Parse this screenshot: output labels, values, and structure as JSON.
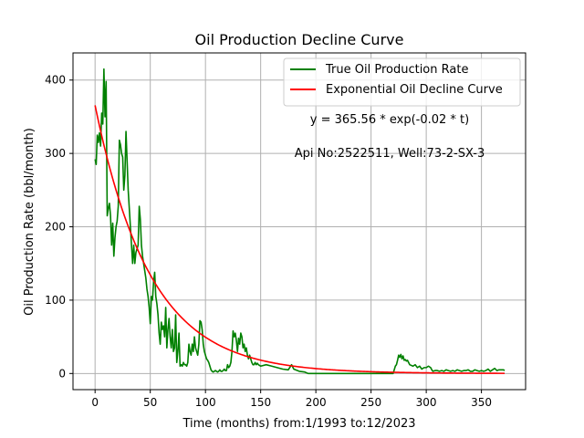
{
  "chart_data": {
    "type": "line",
    "title": "Oil Production Decline Curve",
    "xlabel": "Time (months) from:1/1993 to:12/2023",
    "ylabel": "Oil Production Rate (bbl/month)",
    "xlim": [
      -20,
      390
    ],
    "ylim": [
      -22,
      437
    ],
    "x_ticks": [
      0,
      50,
      100,
      150,
      200,
      250,
      300,
      350
    ],
    "y_ticks": [
      0,
      100,
      200,
      300,
      400
    ],
    "grid": true,
    "legend_position": "top-right",
    "colors": {
      "true_series": "#008000",
      "fit_series": "#ff0000",
      "grid": "#b0b0b0"
    },
    "annotations": [
      "y = 365.56 * exp(-0.02 * t)",
      "Api No:2522511, Well:73-2-SX-3"
    ],
    "series": [
      {
        "name": "True Oil Production Rate",
        "color": "#008000",
        "points": [
          [
            0,
            292
          ],
          [
            1,
            285
          ],
          [
            2,
            325
          ],
          [
            3,
            315
          ],
          [
            4,
            328
          ],
          [
            5,
            310
          ],
          [
            6,
            355
          ],
          [
            7,
            340
          ],
          [
            8,
            415
          ],
          [
            9,
            350
          ],
          [
            10,
            398
          ],
          [
            11,
            215
          ],
          [
            12,
            225
          ],
          [
            13,
            232
          ],
          [
            14,
            215
          ],
          [
            15,
            175
          ],
          [
            16,
            205
          ],
          [
            17,
            160
          ],
          [
            18,
            185
          ],
          [
            19,
            200
          ],
          [
            20,
            208
          ],
          [
            21,
            228
          ],
          [
            22,
            318
          ],
          [
            23,
            312
          ],
          [
            24,
            300
          ],
          [
            25,
            295
          ],
          [
            26,
            250
          ],
          [
            27,
            270
          ],
          [
            28,
            330
          ],
          [
            29,
            290
          ],
          [
            30,
            250
          ],
          [
            31,
            225
          ],
          [
            32,
            200
          ],
          [
            33,
            175
          ],
          [
            34,
            150
          ],
          [
            35,
            175
          ],
          [
            36,
            150
          ],
          [
            37,
            165
          ],
          [
            38,
            170
          ],
          [
            39,
            175
          ],
          [
            40,
            228
          ],
          [
            41,
            210
          ],
          [
            42,
            175
          ],
          [
            43,
            160
          ],
          [
            44,
            150
          ],
          [
            45,
            140
          ],
          [
            46,
            130
          ],
          [
            47,
            115
          ],
          [
            48,
            105
          ],
          [
            49,
            90
          ],
          [
            50,
            68
          ],
          [
            51,
            105
          ],
          [
            52,
            100
          ],
          [
            53,
            125
          ],
          [
            54,
            138
          ],
          [
            55,
            105
          ],
          [
            56,
            95
          ],
          [
            57,
            80
          ],
          [
            58,
            55
          ],
          [
            59,
            40
          ],
          [
            60,
            70
          ],
          [
            61,
            60
          ],
          [
            62,
            65
          ],
          [
            63,
            50
          ],
          [
            64,
            90
          ],
          [
            65,
            35
          ],
          [
            66,
            60
          ],
          [
            67,
            75
          ],
          [
            68,
            50
          ],
          [
            69,
            35
          ],
          [
            70,
            60
          ],
          [
            71,
            30
          ],
          [
            72,
            35
          ],
          [
            73,
            80
          ],
          [
            74,
            15
          ],
          [
            75,
            30
          ],
          [
            76,
            55
          ],
          [
            77,
            10
          ],
          [
            78,
            12
          ],
          [
            79,
            10
          ],
          [
            80,
            15
          ],
          [
            81,
            12
          ],
          [
            82,
            12
          ],
          [
            83,
            10
          ],
          [
            84,
            15
          ],
          [
            85,
            40
          ],
          [
            86,
            30
          ],
          [
            87,
            25
          ],
          [
            88,
            40
          ],
          [
            89,
            30
          ],
          [
            90,
            50
          ],
          [
            91,
            35
          ],
          [
            92,
            30
          ],
          [
            93,
            25
          ],
          [
            94,
            40
          ],
          [
            95,
            72
          ],
          [
            96,
            70
          ],
          [
            97,
            60
          ],
          [
            98,
            40
          ],
          [
            99,
            30
          ],
          [
            100,
            25
          ],
          [
            101,
            20
          ],
          [
            102,
            18
          ],
          [
            103,
            15
          ],
          [
            104,
            10
          ],
          [
            105,
            5
          ],
          [
            106,
            3
          ],
          [
            107,
            2
          ],
          [
            108,
            3
          ],
          [
            109,
            4
          ],
          [
            110,
            3
          ],
          [
            111,
            2
          ],
          [
            112,
            3
          ],
          [
            113,
            5
          ],
          [
            114,
            3
          ],
          [
            115,
            3
          ],
          [
            116,
            4
          ],
          [
            117,
            6
          ],
          [
            118,
            4
          ],
          [
            119,
            4
          ],
          [
            120,
            12
          ],
          [
            121,
            8
          ],
          [
            122,
            10
          ],
          [
            123,
            15
          ],
          [
            124,
            30
          ],
          [
            125,
            58
          ],
          [
            126,
            50
          ],
          [
            127,
            55
          ],
          [
            128,
            45
          ],
          [
            129,
            30
          ],
          [
            130,
            48
          ],
          [
            131,
            40
          ],
          [
            132,
            55
          ],
          [
            133,
            50
          ],
          [
            134,
            35
          ],
          [
            135,
            40
          ],
          [
            136,
            30
          ],
          [
            137,
            35
          ],
          [
            138,
            25
          ],
          [
            139,
            20
          ],
          [
            140,
            25
          ],
          [
            141,
            20
          ],
          [
            142,
            15
          ],
          [
            143,
            12
          ],
          [
            144,
            12
          ],
          [
            145,
            15
          ],
          [
            146,
            12
          ],
          [
            147,
            14
          ],
          [
            148,
            12
          ],
          [
            150,
            10
          ],
          [
            155,
            12
          ],
          [
            160,
            10
          ],
          [
            165,
            8
          ],
          [
            170,
            6
          ],
          [
            175,
            5
          ],
          [
            178,
            12
          ],
          [
            180,
            6
          ],
          [
            185,
            3
          ],
          [
            190,
            2
          ],
          [
            193,
            0
          ],
          [
            200,
            0
          ],
          [
            210,
            0
          ],
          [
            220,
            0
          ],
          [
            230,
            0
          ],
          [
            240,
            0
          ],
          [
            250,
            0
          ],
          [
            260,
            0
          ],
          [
            270,
            0
          ],
          [
            272,
            10
          ],
          [
            273,
            12
          ],
          [
            274,
            18
          ],
          [
            275,
            25
          ],
          [
            276,
            22
          ],
          [
            277,
            26
          ],
          [
            278,
            20
          ],
          [
            279,
            24
          ],
          [
            280,
            18
          ],
          [
            281,
            19
          ],
          [
            282,
            17
          ],
          [
            283,
            18
          ],
          [
            285,
            12
          ],
          [
            288,
            10
          ],
          [
            290,
            12
          ],
          [
            292,
            8
          ],
          [
            294,
            10
          ],
          [
            296,
            6
          ],
          [
            298,
            8
          ],
          [
            300,
            8
          ],
          [
            302,
            10
          ],
          [
            304,
            8
          ],
          [
            305,
            5
          ],
          [
            306,
            3
          ],
          [
            308,
            4
          ],
          [
            310,
            4
          ],
          [
            312,
            3
          ],
          [
            314,
            4
          ],
          [
            316,
            3
          ],
          [
            318,
            5
          ],
          [
            320,
            4
          ],
          [
            322,
            3
          ],
          [
            324,
            4
          ],
          [
            326,
            3
          ],
          [
            328,
            5
          ],
          [
            330,
            4
          ],
          [
            332,
            3
          ],
          [
            334,
            4
          ],
          [
            336,
            4
          ],
          [
            338,
            5
          ],
          [
            340,
            3
          ],
          [
            342,
            3
          ],
          [
            344,
            5
          ],
          [
            346,
            4
          ],
          [
            348,
            3
          ],
          [
            350,
            4
          ],
          [
            352,
            3
          ],
          [
            354,
            4
          ],
          [
            356,
            6
          ],
          [
            358,
            3
          ],
          [
            360,
            5
          ],
          [
            362,
            7
          ],
          [
            364,
            4
          ],
          [
            366,
            5
          ],
          [
            368,
            5
          ],
          [
            370,
            5
          ],
          [
            371,
            4
          ]
        ]
      },
      {
        "name": "Exponential Oil Decline Curve",
        "color": "#ff0000",
        "function": {
          "a": 365.56,
          "b": -0.02,
          "x_start": 0,
          "x_end": 371
        }
      }
    ]
  }
}
